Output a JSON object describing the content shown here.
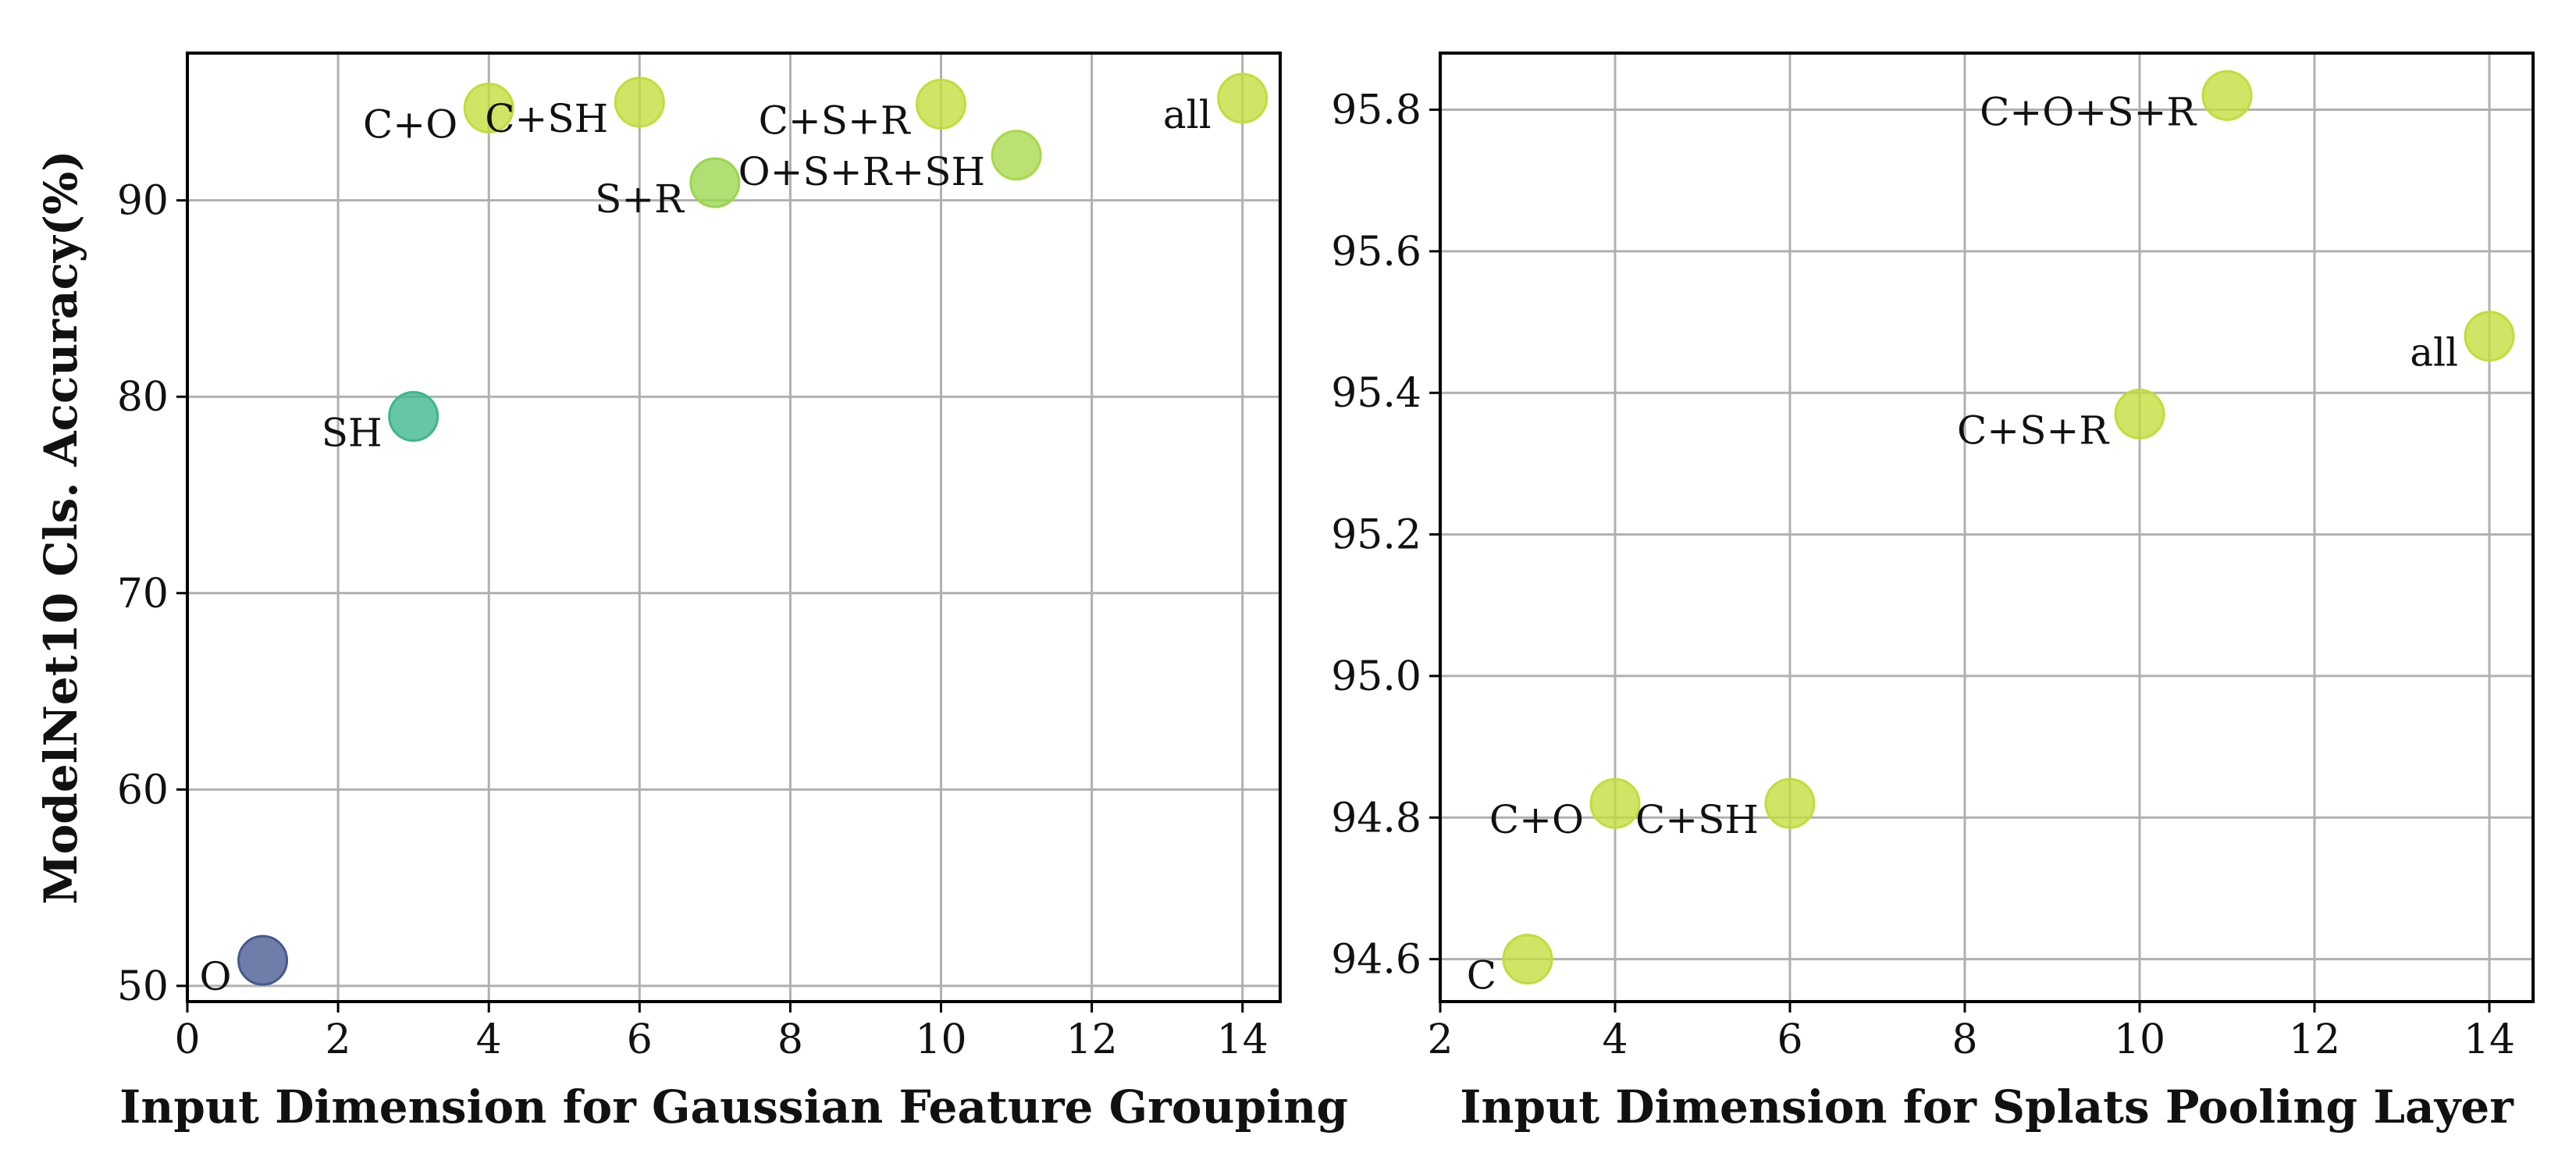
{
  "chart_data": [
    {
      "type": "scatter",
      "xlabel": "Input Dimension for Gaussian Feature Grouping",
      "ylabel": "ModelNet10 Cls. Accuracy(%)",
      "xlim": [
        0,
        14.5
      ],
      "ylim": [
        49.2,
        97.5
      ],
      "xticks": [
        0,
        2,
        4,
        6,
        8,
        10,
        12,
        14
      ],
      "yticks": [
        50,
        60,
        70,
        80,
        90
      ],
      "grid": true,
      "points": [
        {
          "label": "O",
          "x": 1,
          "y": 51.3,
          "color": "#46598f",
          "label_side": "left-below"
        },
        {
          "label": "SH",
          "x": 3,
          "y": 79.0,
          "color": "#3cb68a",
          "label_side": "left-below"
        },
        {
          "label": "C+O",
          "x": 4,
          "y": 94.7,
          "color": "#c3dc3a",
          "label_side": "left-below"
        },
        {
          "label": "C+SH",
          "x": 6,
          "y": 95.0,
          "color": "#c3dc3a",
          "label_side": "left-below"
        },
        {
          "label": "S+R",
          "x": 7,
          "y": 90.9,
          "color": "#9ad64d",
          "label_side": "left-below"
        },
        {
          "label": "C+S+R",
          "x": 10,
          "y": 94.9,
          "color": "#c3dc3a",
          "label_side": "left-below"
        },
        {
          "label": "O+S+R+SH",
          "x": 11,
          "y": 92.3,
          "color": "#a8d84a",
          "label_side": "left-below"
        },
        {
          "label": "all",
          "x": 14,
          "y": 95.2,
          "color": "#c3dc3a",
          "label_side": "left-below"
        }
      ]
    },
    {
      "type": "scatter",
      "xlabel": "Input Dimension for Splats Pooling Layer",
      "ylabel": "",
      "xlim": [
        2,
        14.5
      ],
      "ylim": [
        94.54,
        95.88
      ],
      "xticks": [
        2,
        4,
        6,
        8,
        10,
        12,
        14
      ],
      "yticks": [
        94.6,
        94.8,
        95.0,
        95.2,
        95.4,
        95.6,
        95.8
      ],
      "ytick_labels": [
        "94.6",
        "94.8",
        "95.0",
        "95.2",
        "95.4",
        "95.6",
        "95.8"
      ],
      "grid": true,
      "points": [
        {
          "label": "C",
          "x": 3,
          "y": 94.6,
          "color": "#c3dc3a",
          "label_side": "left-below"
        },
        {
          "label": "C+O",
          "x": 4,
          "y": 94.82,
          "color": "#c3dc3a",
          "label_side": "left-below"
        },
        {
          "label": "C+SH",
          "x": 6,
          "y": 94.82,
          "color": "#c3dc3a",
          "label_side": "left-below"
        },
        {
          "label": "C+S+R",
          "x": 10,
          "y": 95.37,
          "color": "#c3dc3a",
          "label_side": "left-below"
        },
        {
          "label": "C+O+S+R",
          "x": 11,
          "y": 95.82,
          "color": "#c3dc3a",
          "label_side": "left-below"
        },
        {
          "label": "all",
          "x": 14,
          "y": 95.48,
          "color": "#c3dc3a",
          "label_side": "left-below"
        }
      ]
    }
  ]
}
